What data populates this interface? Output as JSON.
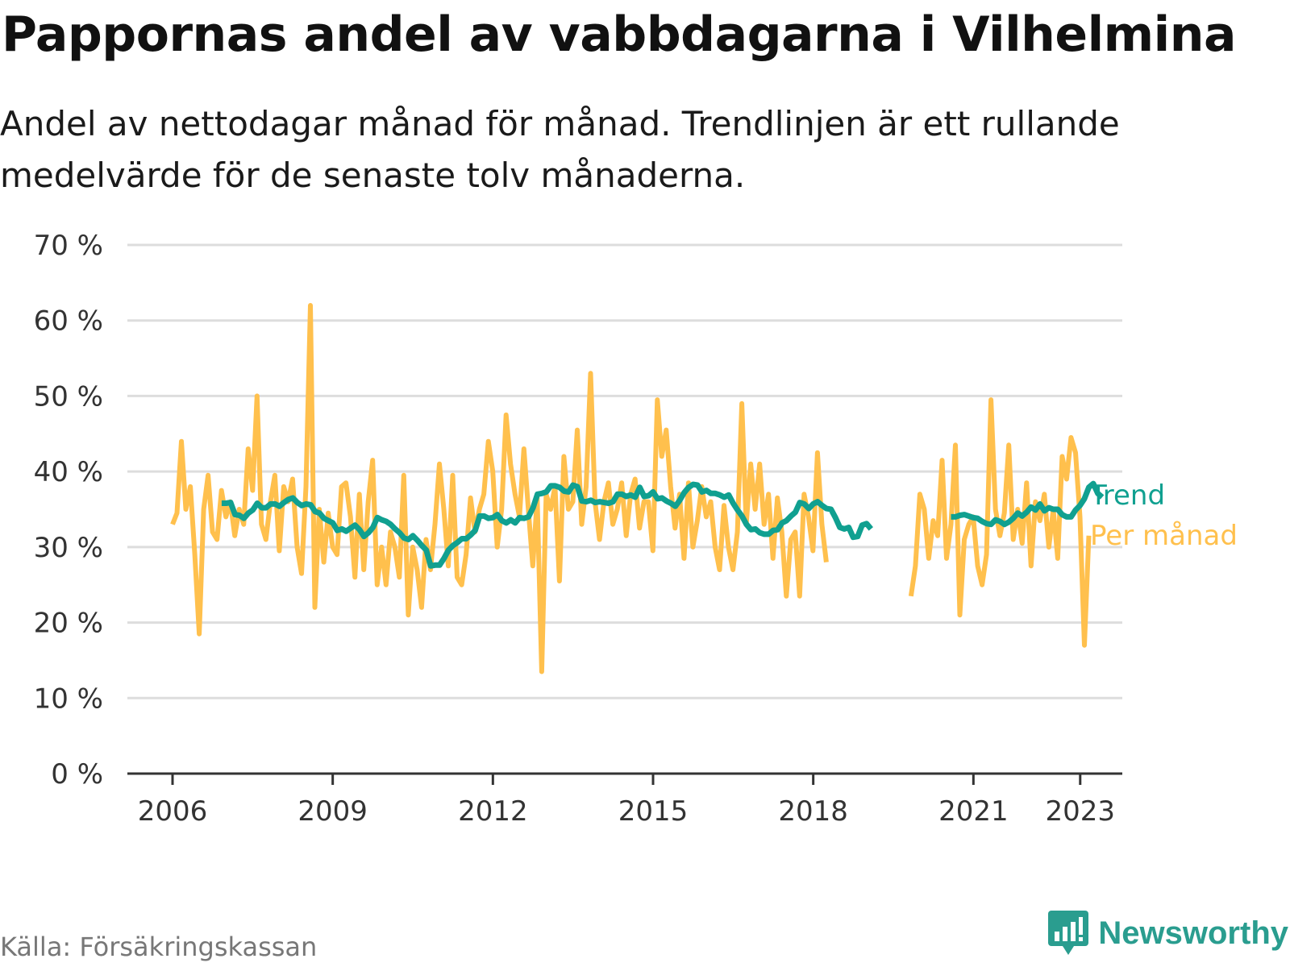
{
  "title": "Pappornas andel av vabbdagarna i Vilhelmina",
  "subtitle": "Andel av nettodagar månad för månad. Trendlinjen är ett rullande medelvärde för de senaste tolv månaderna.",
  "source": "Källa: Försäkringskassan",
  "brand": "Newsworthy",
  "colors": {
    "monthly": "#ffc04d",
    "trend": "#10a090",
    "grid": "#dddddd",
    "axis": "#333333"
  },
  "chart_data": {
    "type": "line",
    "x_axis": {
      "min": 2006,
      "max": 2024,
      "ticks": [
        "2006",
        "2009",
        "2012",
        "2015",
        "2018",
        "2021",
        "2023"
      ]
    },
    "y_axis": {
      "min": 0,
      "max": 70,
      "unit": "%",
      "ticks": [
        "0 %",
        "10 %",
        "20 %",
        "30 %",
        "40 %",
        "50 %",
        "60 %",
        "70 %"
      ]
    },
    "grid": true,
    "series": [
      {
        "name": "Per månad",
        "color": "#ffc04d",
        "x_start": 2006.0,
        "x_step": 0.0833,
        "values": [
          33,
          34.5,
          44,
          35,
          38,
          29,
          18.5,
          35,
          39.5,
          32,
          31,
          37.5,
          34,
          36,
          31.5,
          35,
          33,
          43,
          37.5,
          50,
          33,
          31,
          36,
          39.5,
          29.5,
          38,
          36,
          39,
          30,
          26.5,
          38,
          62,
          22,
          35,
          28,
          34.5,
          30,
          29,
          38,
          38.5,
          34,
          26,
          37,
          27,
          36,
          41.5,
          25,
          30,
          25,
          32,
          30,
          26,
          39.5,
          21,
          30,
          27,
          22,
          31,
          27,
          33,
          41,
          35,
          27.5,
          39.5,
          26,
          25,
          29,
          36.5,
          32,
          35,
          37,
          44,
          40,
          30,
          35,
          47.5,
          41,
          37,
          34,
          43,
          35,
          27.5,
          36.5,
          13.5,
          37,
          35,
          38,
          25.5,
          42,
          35,
          36,
          45.5,
          33,
          38,
          53,
          36,
          31,
          36,
          38.5,
          33,
          35,
          38.5,
          31.5,
          37,
          39,
          32.5,
          36,
          36,
          29.5,
          49.5,
          42,
          45.5,
          38,
          32.5,
          37,
          28.5,
          38.5,
          30,
          33.5,
          38,
          34,
          36,
          30,
          27,
          35.5,
          30,
          27,
          32,
          49,
          33,
          41,
          35,
          41,
          33,
          37,
          28.5,
          36.5,
          32,
          23.5,
          31,
          32,
          23.5,
          37,
          34,
          29.5,
          42.5,
          33,
          28
        ]
      },
      {
        "name": "Per månad",
        "color": "#ffc04d",
        "x_start": 2019.83,
        "x_step": 0.0833,
        "values": [
          23.5,
          27.5,
          37,
          35,
          28.5,
          33.5,
          31.5,
          41.5,
          28.5,
          33,
          43.5,
          21,
          31,
          33,
          34,
          27.5,
          25,
          29,
          49.5,
          35,
          31.5,
          34.5,
          43.5,
          31,
          35,
          30.5,
          38.5,
          27.5,
          36,
          33.5,
          37,
          30,
          35,
          28.5,
          42,
          39,
          44.5,
          42.5,
          34,
          17,
          31.5
        ]
      },
      {
        "name": "Trend",
        "color": "#10a090",
        "x_start": 2006.92,
        "x_step": 0.0833,
        "values": [
          35.8,
          35.8,
          35.9,
          34.3,
          34.2,
          33.8,
          34.5,
          34.9,
          35.8,
          35.2,
          35.2,
          35.7,
          35.7,
          35.4,
          35.9,
          36.3,
          36.5,
          35.9,
          35.5,
          35.7,
          35.6,
          34.7,
          34.5,
          33.8,
          33.5,
          33.2,
          32.2,
          32.4,
          32.1,
          32.5,
          32.9,
          32.3,
          31.4,
          31.9,
          32.6,
          33.9,
          33.6,
          33.4,
          33.0,
          32.4,
          31.9,
          31.2,
          31.0,
          31.5,
          30.9,
          30.2,
          29.6,
          27.5,
          27.6,
          27.6,
          28.5,
          29.6,
          30.2,
          30.6,
          31.1,
          31.1,
          31.6,
          32.2,
          34.1,
          34.1,
          33.8,
          33.9,
          34.3,
          33.5,
          33.2,
          33.6,
          33.2,
          33.9,
          33.8,
          34.0,
          35.2,
          37.0,
          37.1,
          37.3,
          38.1,
          38.1,
          37.9,
          37.4,
          37.3,
          38.2,
          38.0,
          36.1,
          36.0,
          36.2,
          35.9,
          36.0,
          35.9,
          35.8,
          36.0,
          37.0,
          37.0,
          36.7,
          36.9,
          36.6,
          37.9,
          36.7,
          36.8,
          37.3,
          36.4,
          36.5,
          36.1,
          35.8,
          35.4,
          36.2,
          37.2,
          37.9,
          38.3,
          38.2,
          37.3,
          37.5,
          37.1,
          37.1,
          36.9,
          36.6,
          36.9,
          35.8,
          34.9,
          34.1,
          33.0,
          32.3,
          32.4,
          31.9,
          31.7,
          31.7,
          32.2,
          32.3,
          33.2,
          33.5,
          34.1,
          34.6,
          35.9,
          35.7,
          35.1,
          35.7,
          36.0,
          35.5,
          35.1,
          35.0,
          33.9,
          32.6,
          32.4,
          32.6,
          31.3,
          31.4,
          32.9,
          33.1,
          32.4
        ]
      },
      {
        "name": "Trend",
        "color": "#10a090",
        "x_start": 2020.58,
        "x_step": 0.0833,
        "values": [
          34.0,
          34.0,
          34.2,
          34.3,
          34.1,
          33.9,
          33.8,
          33.4,
          33.1,
          33.0,
          33.6,
          33.4,
          33.0,
          33.3,
          33.8,
          34.5,
          34.1,
          34.6,
          35.3,
          34.9,
          35.7,
          34.8,
          35.2,
          35.0,
          35.0,
          34.3,
          34.0,
          34.0,
          34.9,
          35.5,
          36.4,
          37.9,
          38.4,
          37.1,
          36.6
        ]
      }
    ],
    "annotations": {
      "trend_label": "Trend",
      "monthly_label": "Per månad"
    }
  }
}
